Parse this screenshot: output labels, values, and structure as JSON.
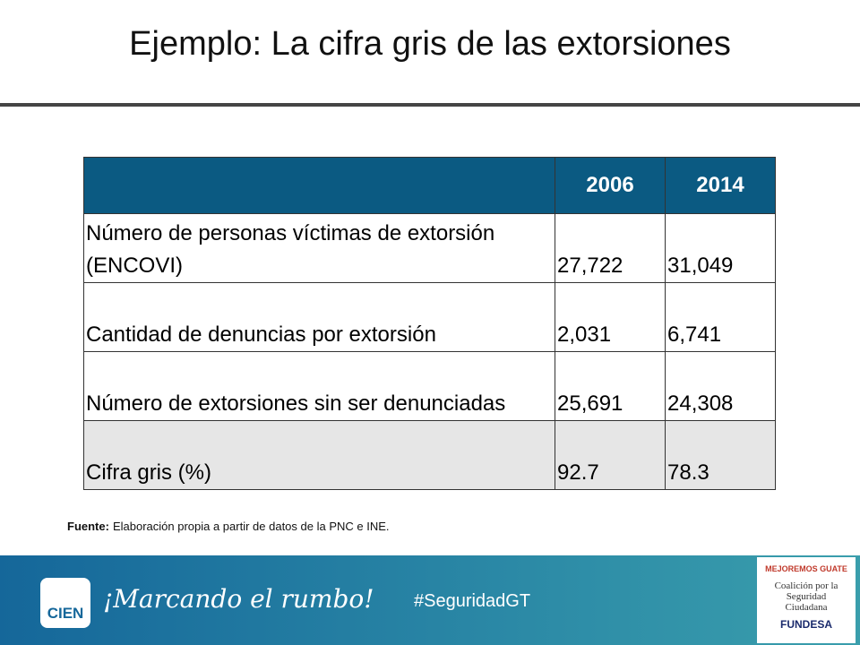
{
  "header": {
    "title": "Ejemplo: La cifra gris de las extorsiones"
  },
  "table": {
    "columns": [
      "2006",
      "2014"
    ],
    "rows": [
      [
        "Número de personas víctimas de extorsión (ENCOVI)",
        "27,722",
        "31,049"
      ],
      [
        "Cantidad de denuncias por extorsión",
        "2,031",
        "6,741"
      ],
      [
        "Número de extorsiones sin ser denunciadas",
        "25,691",
        "24,308"
      ],
      [
        "Cifra gris (%)",
        "92.7",
        "78.3"
      ]
    ]
  },
  "source": {
    "label": "Fuente:",
    "text": "Elaboración propia a partir de datos de la PNC e INE."
  },
  "footer": {
    "logo": "CIEN",
    "slogan": "¡Marcando el rumbo!",
    "hashtag": "#SeguridadGT",
    "partner": {
      "badge": "MEJOREMOS GUATE",
      "name": "Coalición por la Seguridad Ciudadana",
      "org": "FUNDESA"
    }
  }
}
